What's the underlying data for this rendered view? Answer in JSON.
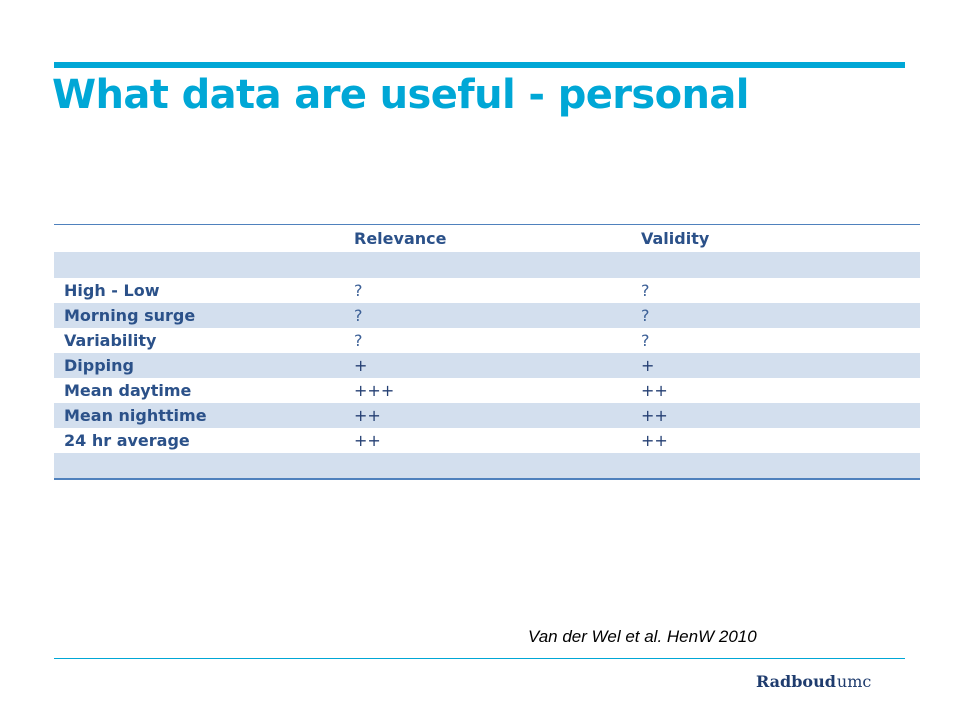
{
  "slide": {
    "title": "What data are useful - personal",
    "citation": "Van der Wel et al. HenW 2010",
    "logo": {
      "main": "Radboud",
      "sub": "umc"
    },
    "accent_color": "#00a7d6"
  },
  "table": {
    "headers": [
      "",
      "Relevance",
      "Validity"
    ],
    "rows": [
      {
        "label": "High - Low",
        "relevance": "?",
        "validity": "?"
      },
      {
        "label": "Morning surge",
        "relevance": "?",
        "validity": "?"
      },
      {
        "label": "Variability",
        "relevance": "?",
        "validity": "?"
      },
      {
        "label": "Dipping",
        "relevance": "+",
        "validity": "+"
      },
      {
        "label": "Mean daytime",
        "relevance": "+++",
        "validity": "++"
      },
      {
        "label": "Mean nighttime",
        "relevance": "++",
        "validity": "++"
      },
      {
        "label": "24 hr average",
        "relevance": "++",
        "validity": "++"
      }
    ],
    "band_color": "#d3dfee",
    "border_color": "#4f81bd"
  }
}
